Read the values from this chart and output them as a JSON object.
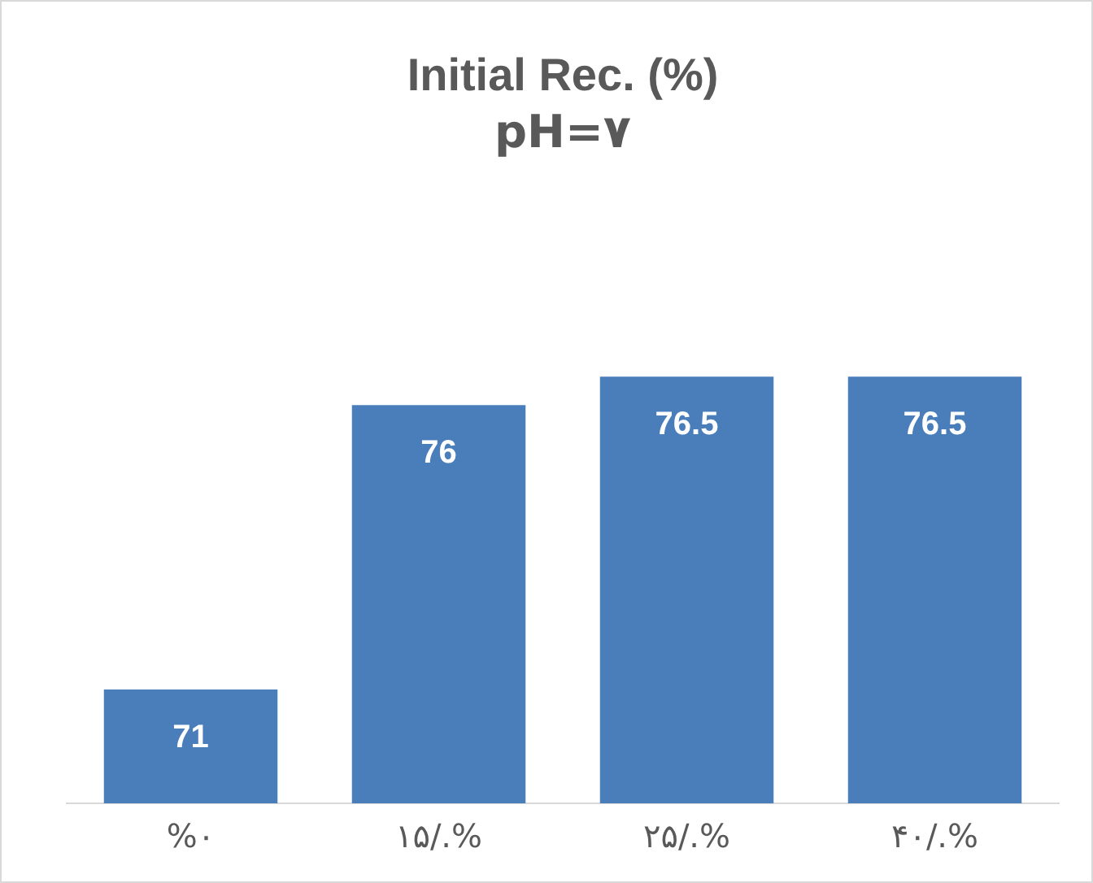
{
  "chart_data": {
    "type": "bar",
    "title": "Initial Rec. (%)",
    "subtitle": "pH=۷",
    "categories": [
      "%۰",
      "۱۵/.%",
      "۲۵/.%",
      "۴۰/.%"
    ],
    "values": [
      71,
      76,
      76.5,
      76.5
    ],
    "color": "#4a7ebb",
    "tick_labels": "x",
    "grid": false,
    "legend": false,
    "data_labels": true
  }
}
